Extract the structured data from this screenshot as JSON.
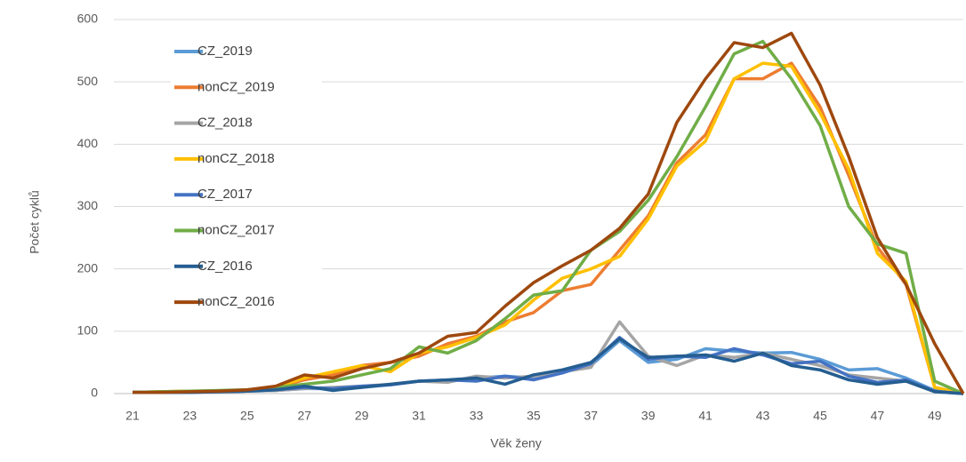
{
  "chart_data": {
    "type": "line",
    "xlabel": "Věk ženy",
    "ylabel": "Počet cyklů",
    "categories": [
      "21",
      null,
      "23",
      null,
      "25",
      null,
      "27",
      null,
      "29",
      null,
      "31",
      null,
      "33",
      null,
      "35",
      null,
      "37",
      null,
      "39",
      null,
      "41",
      null,
      "43",
      null,
      "45",
      null,
      "47",
      null,
      "49",
      null
    ],
    "ylim": [
      0,
      600
    ],
    "yticks": [
      0,
      100,
      200,
      300,
      400,
      500,
      600
    ],
    "grid": true,
    "legend": "upper left",
    "series": [
      {
        "name": "CZ_2019",
        "color": "#5b9bd5",
        "values": [
          2,
          2,
          3,
          3,
          4,
          5,
          8,
          8,
          10,
          14,
          20,
          20,
          25,
          28,
          25,
          35,
          45,
          85,
          50,
          55,
          72,
          68,
          65,
          66,
          55,
          38,
          40,
          25,
          5,
          0
        ]
      },
      {
        "name": "nonCZ_2019",
        "color": "#ed7d31",
        "values": [
          2,
          3,
          4,
          4,
          6,
          10,
          22,
          30,
          45,
          50,
          60,
          80,
          92,
          115,
          130,
          165,
          175,
          230,
          285,
          370,
          415,
          505,
          505,
          530,
          460,
          350,
          235,
          175,
          10,
          0
        ]
      },
      {
        "name": "CZ_2018",
        "color": "#a5a5a5",
        "values": [
          2,
          2,
          3,
          3,
          4,
          5,
          8,
          10,
          12,
          15,
          20,
          18,
          28,
          25,
          28,
          35,
          42,
          115,
          60,
          45,
          62,
          58,
          65,
          55,
          45,
          30,
          25,
          20,
          3,
          0
        ]
      },
      {
        "name": "nonCZ_2018",
        "color": "#ffc000",
        "values": [
          2,
          3,
          4,
          4,
          6,
          10,
          25,
          35,
          45,
          35,
          65,
          75,
          90,
          110,
          150,
          185,
          200,
          220,
          280,
          365,
          405,
          505,
          530,
          525,
          450,
          360,
          225,
          180,
          10,
          0
        ]
      },
      {
        "name": "CZ_2017",
        "color": "#4472c4",
        "values": [
          2,
          2,
          2,
          3,
          4,
          6,
          10,
          8,
          12,
          14,
          20,
          22,
          20,
          28,
          22,
          33,
          48,
          90,
          55,
          60,
          58,
          72,
          62,
          48,
          52,
          28,
          18,
          22,
          4,
          0
        ]
      },
      {
        "name": "nonCZ_2017",
        "color": "#70ad47",
        "values": [
          2,
          3,
          4,
          5,
          6,
          10,
          15,
          20,
          30,
          40,
          75,
          65,
          85,
          120,
          158,
          165,
          230,
          260,
          310,
          380,
          460,
          545,
          565,
          505,
          430,
          300,
          240,
          225,
          20,
          0
        ]
      },
      {
        "name": "CZ_2016",
        "color": "#255e91",
        "values": [
          2,
          2,
          2,
          3,
          4,
          6,
          12,
          5,
          10,
          15,
          20,
          22,
          25,
          15,
          30,
          38,
          50,
          88,
          58,
          60,
          62,
          52,
          65,
          45,
          38,
          22,
          15,
          20,
          3,
          0
        ]
      },
      {
        "name": "nonCZ_2016",
        "color": "#9e480e",
        "values": [
          2,
          2,
          3,
          4,
          6,
          12,
          30,
          25,
          40,
          50,
          65,
          92,
          98,
          140,
          178,
          205,
          230,
          265,
          320,
          435,
          505,
          563,
          555,
          578,
          495,
          380,
          250,
          175,
          80,
          0
        ]
      }
    ]
  }
}
